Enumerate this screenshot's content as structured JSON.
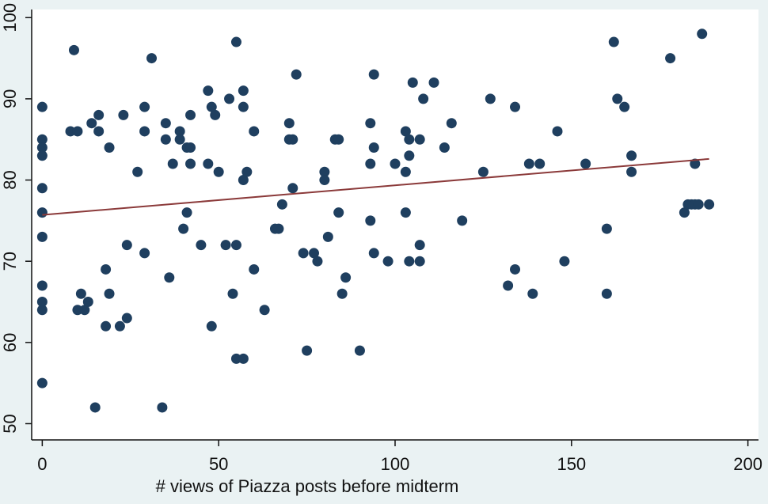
{
  "chart_data": {
    "type": "scatter",
    "title": "",
    "xlabel": "# views of Piazza posts before midterm",
    "ylabel": "",
    "xlim": [
      -3,
      203
    ],
    "ylim": [
      48,
      101
    ],
    "xticks": [
      0,
      50,
      100,
      150,
      200
    ],
    "yticks": [
      50,
      60,
      70,
      80,
      90,
      100
    ],
    "grid": false,
    "colors": {
      "background": "#eaf2f3",
      "plot_area": "#ffffff",
      "points": "#1f3f5f",
      "fit_line": "#8b3a3a"
    },
    "fit_line": {
      "x": [
        0,
        189
      ],
      "y": [
        75.7,
        82.6
      ]
    },
    "points": [
      [
        0,
        89
      ],
      [
        0,
        85
      ],
      [
        0,
        84
      ],
      [
        0,
        83
      ],
      [
        0,
        79
      ],
      [
        0,
        76
      ],
      [
        0,
        73
      ],
      [
        0,
        67
      ],
      [
        0,
        65
      ],
      [
        0,
        64
      ],
      [
        0,
        55
      ],
      [
        8,
        86
      ],
      [
        9,
        96
      ],
      [
        10,
        86
      ],
      [
        10,
        64
      ],
      [
        11,
        66
      ],
      [
        12,
        64
      ],
      [
        13,
        65
      ],
      [
        14,
        87
      ],
      [
        15,
        52
      ],
      [
        16,
        88
      ],
      [
        16,
        86
      ],
      [
        18,
        69
      ],
      [
        18,
        62
      ],
      [
        19,
        84
      ],
      [
        19,
        66
      ],
      [
        22,
        62
      ],
      [
        23,
        88
      ],
      [
        24,
        72
      ],
      [
        24,
        63
      ],
      [
        27,
        81
      ],
      [
        29,
        89
      ],
      [
        29,
        86
      ],
      [
        29,
        71
      ],
      [
        31,
        95
      ],
      [
        34,
        52
      ],
      [
        35,
        87
      ],
      [
        35,
        85
      ],
      [
        36,
        68
      ],
      [
        37,
        82
      ],
      [
        39,
        86
      ],
      [
        39,
        85
      ],
      [
        40,
        74
      ],
      [
        41,
        84
      ],
      [
        41,
        76
      ],
      [
        42,
        88
      ],
      [
        42,
        84
      ],
      [
        42,
        82
      ],
      [
        45,
        72
      ],
      [
        47,
        91
      ],
      [
        47,
        82
      ],
      [
        48,
        89
      ],
      [
        48,
        62
      ],
      [
        49,
        88
      ],
      [
        50,
        81
      ],
      [
        52,
        72
      ],
      [
        53,
        90
      ],
      [
        54,
        66
      ],
      [
        55,
        97
      ],
      [
        55,
        72
      ],
      [
        55,
        58
      ],
      [
        57,
        91
      ],
      [
        57,
        89
      ],
      [
        57,
        80
      ],
      [
        57,
        58
      ],
      [
        58,
        81
      ],
      [
        60,
        86
      ],
      [
        60,
        69
      ],
      [
        63,
        64
      ],
      [
        66,
        74
      ],
      [
        67,
        74
      ],
      [
        68,
        77
      ],
      [
        70,
        87
      ],
      [
        70,
        85
      ],
      [
        71,
        85
      ],
      [
        71,
        79
      ],
      [
        72,
        93
      ],
      [
        74,
        71
      ],
      [
        75,
        59
      ],
      [
        77,
        71
      ],
      [
        78,
        70
      ],
      [
        80,
        81
      ],
      [
        80,
        80
      ],
      [
        81,
        73
      ],
      [
        83,
        85
      ],
      [
        84,
        85
      ],
      [
        84,
        76
      ],
      [
        85,
        66
      ],
      [
        86,
        68
      ],
      [
        90,
        59
      ],
      [
        93,
        87
      ],
      [
        93,
        82
      ],
      [
        93,
        75
      ],
      [
        94,
        93
      ],
      [
        94,
        84
      ],
      [
        94,
        71
      ],
      [
        98,
        70
      ],
      [
        100,
        82
      ],
      [
        103,
        86
      ],
      [
        103,
        81
      ],
      [
        103,
        76
      ],
      [
        104,
        85
      ],
      [
        104,
        83
      ],
      [
        104,
        70
      ],
      [
        105,
        92
      ],
      [
        107,
        85
      ],
      [
        107,
        72
      ],
      [
        107,
        70
      ],
      [
        108,
        90
      ],
      [
        111,
        92
      ],
      [
        114,
        84
      ],
      [
        116,
        87
      ],
      [
        119,
        75
      ],
      [
        125,
        81
      ],
      [
        127,
        90
      ],
      [
        132,
        67
      ],
      [
        134,
        89
      ],
      [
        134,
        69
      ],
      [
        138,
        82
      ],
      [
        139,
        66
      ],
      [
        141,
        82
      ],
      [
        146,
        86
      ],
      [
        148,
        70
      ],
      [
        154,
        82
      ],
      [
        160,
        74
      ],
      [
        160,
        66
      ],
      [
        162,
        97
      ],
      [
        163,
        90
      ],
      [
        165,
        89
      ],
      [
        167,
        83
      ],
      [
        167,
        81
      ],
      [
        178,
        95
      ],
      [
        182,
        76
      ],
      [
        183,
        77
      ],
      [
        184,
        77
      ],
      [
        185,
        82
      ],
      [
        185,
        77
      ],
      [
        186,
        77
      ],
      [
        187,
        98
      ],
      [
        189,
        77
      ]
    ]
  }
}
